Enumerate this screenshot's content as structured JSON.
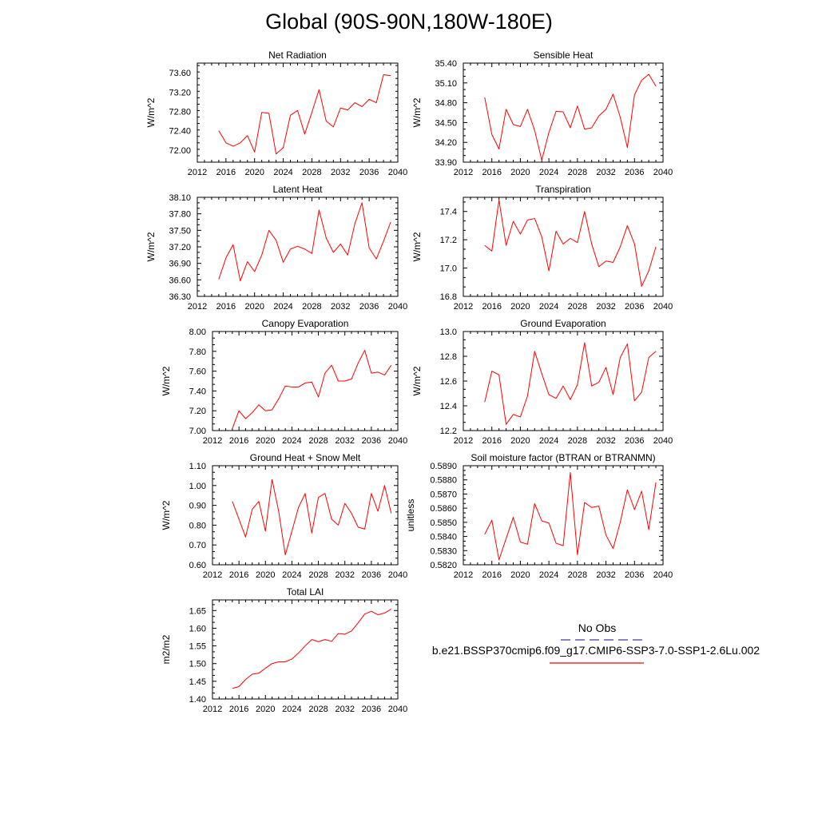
{
  "title": "Global (90S-90N,180W-180E)",
  "legend": {
    "obs_label": "No Obs",
    "case_label": "b.e21.BSSP370cmip6.f09_g17.CMIP6-SSP3-7.0-SSP1-2.6Lu.002",
    "case_color": "#ff0000",
    "obs_color": "#3b3bb0"
  },
  "chart_data": [
    {
      "type": "line",
      "title": "Net Radiation",
      "ylabel": "W/m^2",
      "xlim": [
        2012,
        2040
      ],
      "ylim": [
        71.75,
        73.8
      ],
      "xticks": [
        "2012",
        "2016",
        "2020",
        "2024",
        "2028",
        "2032",
        "2036",
        "2040"
      ],
      "yticks": [
        "72.00",
        "72.40",
        "72.80",
        "73.20",
        "73.60"
      ],
      "x": [
        2015,
        2016,
        2017,
        2018,
        2019,
        2020,
        2021,
        2022,
        2023,
        2024,
        2025,
        2026,
        2027,
        2028,
        2029,
        2030,
        2031,
        2032,
        2033,
        2034,
        2035,
        2036,
        2037,
        2038,
        2039
      ],
      "series": [
        {
          "values": [
            72.4,
            72.15,
            72.08,
            72.15,
            72.3,
            71.96,
            72.78,
            72.76,
            71.92,
            72.05,
            72.72,
            72.82,
            72.33,
            72.78,
            73.25,
            72.6,
            72.48,
            72.87,
            72.83,
            72.98,
            72.9,
            73.05,
            72.98,
            73.56,
            73.54
          ]
        }
      ]
    },
    {
      "type": "line",
      "title": "Sensible Heat",
      "ylabel": "W/m^2",
      "xlim": [
        2012,
        2040
      ],
      "ylim": [
        33.9,
        35.4
      ],
      "xticks": [
        "2012",
        "2016",
        "2020",
        "2024",
        "2028",
        "2032",
        "2036",
        "2040"
      ],
      "yticks": [
        "33.90",
        "34.20",
        "34.50",
        "34.80",
        "35.10",
        "35.40"
      ],
      "x": [
        2015,
        2016,
        2017,
        2018,
        2019,
        2020,
        2021,
        2022,
        2023,
        2024,
        2025,
        2026,
        2027,
        2028,
        2029,
        2030,
        2031,
        2032,
        2033,
        2034,
        2035,
        2036,
        2037,
        2038,
        2039
      ],
      "series": [
        {
          "values": [
            34.88,
            34.32,
            34.1,
            34.7,
            34.47,
            34.44,
            34.7,
            34.38,
            33.93,
            34.35,
            34.67,
            34.66,
            34.42,
            34.75,
            34.4,
            34.42,
            34.6,
            34.7,
            34.93,
            34.58,
            34.12,
            34.92,
            35.14,
            35.23,
            35.05
          ]
        }
      ]
    },
    {
      "type": "line",
      "title": "Latent Heat",
      "ylabel": "W/m^2",
      "xlim": [
        2012,
        2040
      ],
      "ylim": [
        36.3,
        38.1
      ],
      "xticks": [
        "2012",
        "2016",
        "2020",
        "2024",
        "2028",
        "2032",
        "2036",
        "2040"
      ],
      "yticks": [
        "36.30",
        "36.60",
        "36.90",
        "37.20",
        "37.50",
        "37.80",
        "38.10"
      ],
      "x": [
        2015,
        2016,
        2017,
        2018,
        2019,
        2020,
        2021,
        2022,
        2023,
        2024,
        2025,
        2026,
        2027,
        2028,
        2029,
        2030,
        2031,
        2032,
        2033,
        2034,
        2035,
        2036,
        2037,
        2038,
        2039
      ],
      "series": [
        {
          "values": [
            36.61,
            37.0,
            37.24,
            36.58,
            36.93,
            36.75,
            37.05,
            37.5,
            37.32,
            36.92,
            37.16,
            37.21,
            37.16,
            37.08,
            37.87,
            37.36,
            37.1,
            37.25,
            37.05,
            37.62,
            38.0,
            37.18,
            36.98,
            37.3,
            37.65
          ]
        }
      ]
    },
    {
      "type": "line",
      "title": "Transpiration",
      "ylabel": "W/m^2",
      "xlim": [
        2012,
        2040
      ],
      "ylim": [
        16.8,
        17.5
      ],
      "xticks": [
        "2012",
        "2016",
        "2020",
        "2024",
        "2028",
        "2032",
        "2036",
        "2040"
      ],
      "yticks": [
        "16.8",
        "17.0",
        "17.2",
        "17.4"
      ],
      "x": [
        2015,
        2016,
        2017,
        2018,
        2019,
        2020,
        2021,
        2022,
        2023,
        2024,
        2025,
        2026,
        2027,
        2028,
        2029,
        2030,
        2031,
        2032,
        2033,
        2034,
        2035,
        2036,
        2037,
        2038,
        2039
      ],
      "series": [
        {
          "values": [
            17.16,
            17.12,
            17.48,
            17.16,
            17.33,
            17.24,
            17.34,
            17.35,
            17.22,
            16.98,
            17.26,
            17.17,
            17.21,
            17.18,
            17.4,
            17.17,
            17.01,
            17.05,
            17.04,
            17.15,
            17.3,
            17.17,
            16.87,
            16.98,
            17.15
          ]
        }
      ]
    },
    {
      "type": "line",
      "title": "Canopy Evaporation",
      "ylabel": "W/m^2",
      "xlim": [
        2012,
        2040
      ],
      "ylim": [
        7.0,
        8.0
      ],
      "xticks": [
        "2012",
        "2016",
        "2020",
        "2024",
        "2028",
        "2032",
        "2036",
        "2040"
      ],
      "yticks": [
        "7.00",
        "7.20",
        "7.40",
        "7.60",
        "7.80",
        "8.00"
      ],
      "x": [
        2015,
        2016,
        2017,
        2018,
        2019,
        2020,
        2021,
        2022,
        2023,
        2024,
        2025,
        2026,
        2027,
        2028,
        2029,
        2030,
        2031,
        2032,
        2033,
        2034,
        2035,
        2036,
        2037,
        2038,
        2039
      ],
      "series": [
        {
          "values": [
            7.02,
            7.2,
            7.12,
            7.18,
            7.26,
            7.2,
            7.21,
            7.32,
            7.45,
            7.44,
            7.44,
            7.48,
            7.49,
            7.34,
            7.58,
            7.66,
            7.5,
            7.5,
            7.52,
            7.68,
            7.81,
            7.58,
            7.59,
            7.56,
            7.66
          ]
        }
      ]
    },
    {
      "type": "line",
      "title": "Ground Evaporation",
      "ylabel": "W/m^2",
      "xlim": [
        2012,
        2040
      ],
      "ylim": [
        12.2,
        13.0
      ],
      "xticks": [
        "2012",
        "2016",
        "2020",
        "2024",
        "2028",
        "2032",
        "2036",
        "2040"
      ],
      "yticks": [
        "12.2",
        "12.4",
        "12.6",
        "12.8",
        "13.0"
      ],
      "x": [
        2015,
        2016,
        2017,
        2018,
        2019,
        2020,
        2021,
        2022,
        2023,
        2024,
        2025,
        2026,
        2027,
        2028,
        2029,
        2030,
        2031,
        2032,
        2033,
        2034,
        2035,
        2036,
        2037,
        2038,
        2039
      ],
      "series": [
        {
          "values": [
            12.43,
            12.68,
            12.65,
            12.25,
            12.33,
            12.31,
            12.48,
            12.84,
            12.66,
            12.49,
            12.46,
            12.56,
            12.45,
            12.57,
            12.91,
            12.56,
            12.59,
            12.71,
            12.49,
            12.79,
            12.9,
            12.44,
            12.51,
            12.79,
            12.84
          ]
        }
      ]
    },
    {
      "type": "line",
      "title": "Ground Heat + Snow Melt",
      "ylabel": "W/m^2",
      "xlim": [
        2012,
        2040
      ],
      "ylim": [
        0.6,
        1.1
      ],
      "xticks": [
        "2012",
        "2016",
        "2020",
        "2024",
        "2028",
        "2032",
        "2036",
        "2040"
      ],
      "yticks": [
        "0.60",
        "0.70",
        "0.80",
        "0.90",
        "1.00",
        "1.10"
      ],
      "x": [
        2015,
        2016,
        2017,
        2018,
        2019,
        2020,
        2021,
        2022,
        2023,
        2024,
        2025,
        2026,
        2027,
        2028,
        2029,
        2030,
        2031,
        2032,
        2033,
        2034,
        2035,
        2036,
        2037,
        2038,
        2039
      ],
      "series": [
        {
          "values": [
            0.92,
            0.83,
            0.74,
            0.88,
            0.92,
            0.77,
            1.03,
            0.87,
            0.65,
            0.77,
            0.89,
            0.96,
            0.76,
            0.94,
            0.96,
            0.83,
            0.8,
            0.91,
            0.86,
            0.79,
            0.78,
            0.96,
            0.87,
            1.0,
            0.86
          ]
        }
      ]
    },
    {
      "type": "line",
      "title": "Soil moisture factor (BTRAN or BTRANMN)",
      "ylabel": "unitless",
      "xlim": [
        2012,
        2040
      ],
      "ylim": [
        0.582,
        0.589
      ],
      "xticks": [
        "2012",
        "2016",
        "2020",
        "2024",
        "2028",
        "2032",
        "2036",
        "2040"
      ],
      "yticks": [
        "0.5820",
        "0.5830",
        "0.5840",
        "0.5850",
        "0.5860",
        "0.5870",
        "0.5880",
        "0.5890"
      ],
      "x": [
        2015,
        2016,
        2017,
        2018,
        2019,
        2020,
        2021,
        2022,
        2023,
        2024,
        2025,
        2026,
        2027,
        2028,
        2029,
        2030,
        2031,
        2032,
        2033,
        2034,
        2035,
        2036,
        2037,
        2038,
        2039
      ],
      "series": [
        {
          "values": [
            0.58415,
            0.58515,
            0.58235,
            0.58385,
            0.58535,
            0.5836,
            0.58345,
            0.58632,
            0.5851,
            0.58495,
            0.58352,
            0.58335,
            0.58852,
            0.5827,
            0.5864,
            0.58605,
            0.58615,
            0.5841,
            0.58315,
            0.585,
            0.5873,
            0.5859,
            0.5872,
            0.58448,
            0.58782
          ]
        }
      ]
    },
    {
      "type": "line",
      "title": "Total LAI",
      "ylabel": "m2/m2",
      "xlim": [
        2012,
        2040
      ],
      "ylim": [
        1.4,
        1.68
      ],
      "xticks": [
        "2012",
        "2016",
        "2020",
        "2024",
        "2028",
        "2032",
        "2036",
        "2040"
      ],
      "yticks": [
        "1.40",
        "1.45",
        "1.50",
        "1.55",
        "1.60",
        "1.65"
      ],
      "x": [
        2015,
        2016,
        2017,
        2018,
        2019,
        2020,
        2021,
        2022,
        2023,
        2024,
        2025,
        2026,
        2027,
        2028,
        2029,
        2030,
        2031,
        2032,
        2033,
        2034,
        2035,
        2036,
        2037,
        2038,
        2039
      ],
      "series": [
        {
          "values": [
            1.43,
            1.435,
            1.455,
            1.47,
            1.473,
            1.487,
            1.5,
            1.505,
            1.505,
            1.513,
            1.53,
            1.55,
            1.568,
            1.562,
            1.568,
            1.563,
            1.585,
            1.583,
            1.592,
            1.615,
            1.64,
            1.648,
            1.638,
            1.643,
            1.654
          ]
        }
      ]
    }
  ]
}
